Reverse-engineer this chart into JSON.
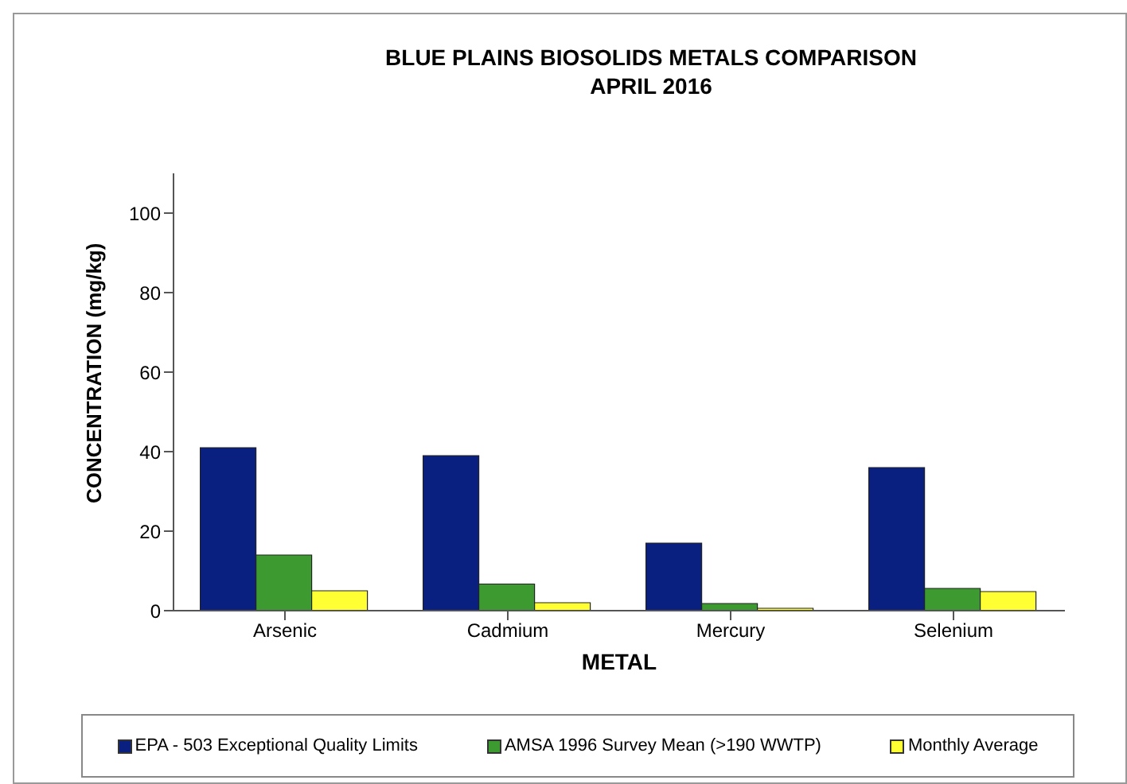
{
  "chart_data": {
    "type": "bar",
    "title": "BLUE PLAINS  BIOSOLIDS METALS COMPARISON",
    "subtitle": "APRIL 2016",
    "xlabel": "METAL",
    "ylabel": "CONCENTRATION (mg/kg)",
    "categories": [
      "Arsenic",
      "Cadmium",
      "Mercury",
      "Selenium"
    ],
    "series": [
      {
        "name": "EPA - 503 Exceptional Quality Limits",
        "color": "#0a2080",
        "values": [
          41,
          39,
          17,
          36
        ]
      },
      {
        "name": "AMSA 1996 Survey Mean (>190 WWTP)",
        "color": "#3c9a30",
        "values": [
          14,
          6.7,
          1.8,
          5.6
        ]
      },
      {
        "name": "Monthly Average",
        "color": "#ffff33",
        "values": [
          5,
          2,
          0.6,
          4.8
        ]
      }
    ],
    "ylim": [
      0,
      110
    ],
    "yticks": [
      0,
      20,
      40,
      60,
      80,
      100
    ],
    "grid": false,
    "legend": "bottom"
  }
}
